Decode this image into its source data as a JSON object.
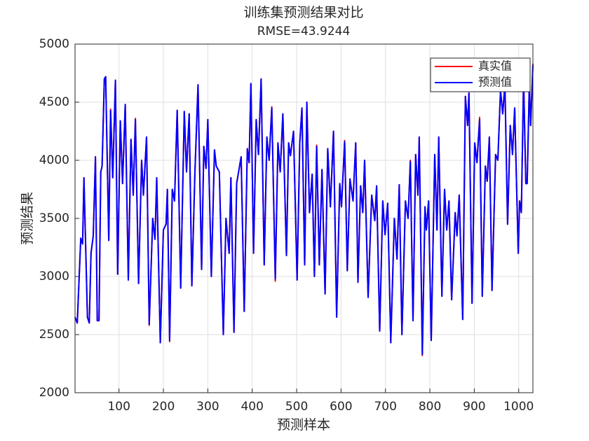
{
  "chart_data": {
    "type": "line",
    "title": [
      "训练集预测结果对比",
      "RMSE=43.9244"
    ],
    "x_label": "预测样本",
    "y_label": "预测结果",
    "x": [
      1,
      6,
      14,
      18,
      21,
      29,
      33,
      37,
      42,
      47,
      51,
      55,
      59,
      62,
      67,
      70,
      77,
      81,
      86,
      92,
      97,
      103,
      108,
      114,
      121,
      127,
      132,
      137,
      144,
      151,
      155,
      162,
      168,
      176,
      181,
      185,
      193,
      200,
      206,
      209,
      214,
      220,
      225,
      231,
      239,
      247,
      252,
      258,
      264,
      271,
      278,
      286,
      291,
      296,
      300,
      308,
      315,
      319,
      326,
      335,
      341,
      348,
      352,
      359,
      365,
      375,
      382,
      389,
      393,
      397,
      403,
      409,
      414,
      420,
      427,
      433,
      438,
      444,
      452,
      458,
      463,
      469,
      477,
      482,
      486,
      493,
      501,
      507,
      512,
      518,
      523,
      529,
      535,
      540,
      545,
      551,
      557,
      564,
      570,
      576,
      583,
      590,
      597,
      601,
      608,
      614,
      620,
      627,
      633,
      638,
      644,
      649,
      653,
      661,
      669,
      676,
      680,
      687,
      694,
      699,
      705,
      712,
      720,
      726,
      731,
      737,
      745,
      751,
      756,
      762,
      768,
      773,
      776,
      783,
      789,
      792,
      797,
      803,
      811,
      816,
      820,
      827,
      833,
      838,
      843,
      849,
      857,
      861,
      866,
      874,
      880,
      885,
      888,
      895,
      901,
      906,
      912,
      918,
      925,
      929,
      934,
      940,
      948,
      953,
      959,
      964,
      969,
      975,
      981,
      986,
      991,
      999,
      1002,
      1006,
      1011,
      1016,
      1019,
      1024,
      1027,
      1032
    ],
    "series": [
      {
        "name": "真实值",
        "color": "#ff0000",
        "values": [
          2650,
          2600,
          3330,
          3280,
          3850,
          2650,
          2600,
          3200,
          3350,
          4030,
          2620,
          2620,
          3900,
          3950,
          4700,
          4720,
          3310,
          4440,
          3850,
          4690,
          3020,
          4340,
          3800,
          4480,
          2970,
          4180,
          3700,
          4360,
          2940,
          4000,
          3700,
          4200,
          2580,
          3500,
          3320,
          3850,
          2430,
          3400,
          3450,
          3750,
          2440,
          3750,
          3650,
          4430,
          2900,
          4420,
          3900,
          4400,
          2920,
          3900,
          4650,
          3060,
          4120,
          3930,
          4350,
          3000,
          4090,
          3950,
          3900,
          2500,
          3500,
          3200,
          3850,
          2520,
          3800,
          4030,
          2700,
          4100,
          3980,
          4660,
          3200,
          4350,
          4050,
          4700,
          3100,
          4200,
          4000,
          4460,
          2960,
          4150,
          3900,
          4400,
          3180,
          4150,
          4040,
          4250,
          2970,
          4150,
          4450,
          3100,
          4500,
          3550,
          3880,
          3000,
          4130,
          3100,
          3920,
          2850,
          4100,
          3600,
          4250,
          2650,
          3800,
          3600,
          4170,
          3050,
          3840,
          3650,
          4150,
          2950,
          3780,
          3550,
          4000,
          2820,
          3700,
          3480,
          3780,
          2530,
          3650,
          3360,
          3630,
          2430,
          3500,
          3150,
          3790,
          2500,
          3650,
          3500,
          4000,
          2620,
          4050,
          3700,
          4200,
          2320,
          3600,
          3400,
          3650,
          2450,
          4050,
          3400,
          4200,
          2830,
          3750,
          3400,
          3650,
          2800,
          3550,
          3350,
          3700,
          2630,
          4550,
          4300,
          4580,
          2770,
          4150,
          3980,
          4370,
          2830,
          3950,
          3820,
          4200,
          2880,
          4050,
          4000,
          4600,
          4400,
          4650,
          3450,
          4300,
          4050,
          4450,
          3200,
          3650,
          3550,
          4700,
          3800,
          3800,
          4650,
          4300,
          4830
        ]
      },
      {
        "name": "预测值",
        "color": "#0000ff",
        "values": [
          2650,
          2600,
          3330,
          3280,
          3850,
          2650,
          2600,
          3200,
          3350,
          4030,
          2620,
          2620,
          3900,
          3950,
          4700,
          4720,
          3310,
          4430,
          3850,
          4690,
          3020,
          4340,
          3800,
          4480,
          2970,
          4180,
          3700,
          4350,
          2940,
          4000,
          3700,
          4200,
          2590,
          3500,
          3320,
          3850,
          2430,
          3400,
          3450,
          3750,
          2450,
          3750,
          3650,
          4430,
          2900,
          4420,
          3900,
          4400,
          2920,
          3900,
          4650,
          3060,
          4120,
          3930,
          4350,
          3000,
          4090,
          3950,
          3900,
          2500,
          3500,
          3200,
          3850,
          2520,
          3800,
          4030,
          2700,
          4100,
          3980,
          4660,
          3200,
          4350,
          4050,
          4700,
          3100,
          4200,
          4000,
          4450,
          2980,
          4150,
          3900,
          4400,
          3180,
          4150,
          4040,
          4250,
          2970,
          4150,
          4450,
          3100,
          4500,
          3550,
          3880,
          3000,
          4120,
          3100,
          3920,
          2850,
          4100,
          3600,
          4250,
          2650,
          3800,
          3600,
          4160,
          3050,
          3840,
          3650,
          4150,
          2950,
          3780,
          3550,
          4000,
          2820,
          3700,
          3480,
          3780,
          2530,
          3650,
          3360,
          3630,
          2430,
          3500,
          3150,
          3790,
          2500,
          3650,
          3500,
          3990,
          2620,
          4050,
          3700,
          4200,
          2330,
          3600,
          3400,
          3650,
          2450,
          4050,
          3400,
          4200,
          2830,
          3750,
          3400,
          3650,
          2800,
          3550,
          3350,
          3700,
          2630,
          4550,
          4300,
          4580,
          2770,
          4150,
          3980,
          4350,
          2830,
          3950,
          3820,
          4200,
          2880,
          4050,
          4000,
          4600,
          4400,
          4650,
          3450,
          4300,
          4050,
          4450,
          3200,
          3650,
          3550,
          4700,
          3800,
          3800,
          4650,
          4300,
          4820
        ]
      }
    ],
    "xlim": [
      1,
      1032
    ],
    "ylim": [
      2000,
      5000
    ],
    "xticks": [
      100,
      200,
      300,
      400,
      500,
      600,
      700,
      800,
      900,
      1000
    ],
    "yticks": [
      2000,
      2500,
      3000,
      3500,
      4000,
      4500,
      5000
    ],
    "grid": true,
    "legend": "northeast"
  }
}
